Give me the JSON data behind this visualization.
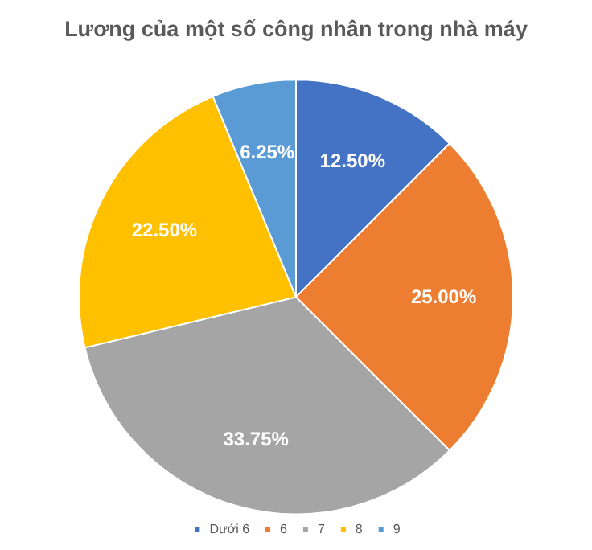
{
  "chart_data": {
    "type": "pie",
    "title": "Lương của một số công nhân trong nhà máy",
    "categories": [
      "Dưới 6",
      "6",
      "7",
      "8",
      "9"
    ],
    "values": [
      12.5,
      25,
      33.75,
      22.5,
      6.25
    ],
    "colors": [
      "#4472c4",
      "#ed7d31",
      "#a5a5a5",
      "#ffc000",
      "#5b9bd5"
    ],
    "value_labels": [
      "12.50%",
      "25.00%",
      "33.75%",
      "22.50%",
      "6.25%"
    ],
    "legend": "bottom"
  }
}
